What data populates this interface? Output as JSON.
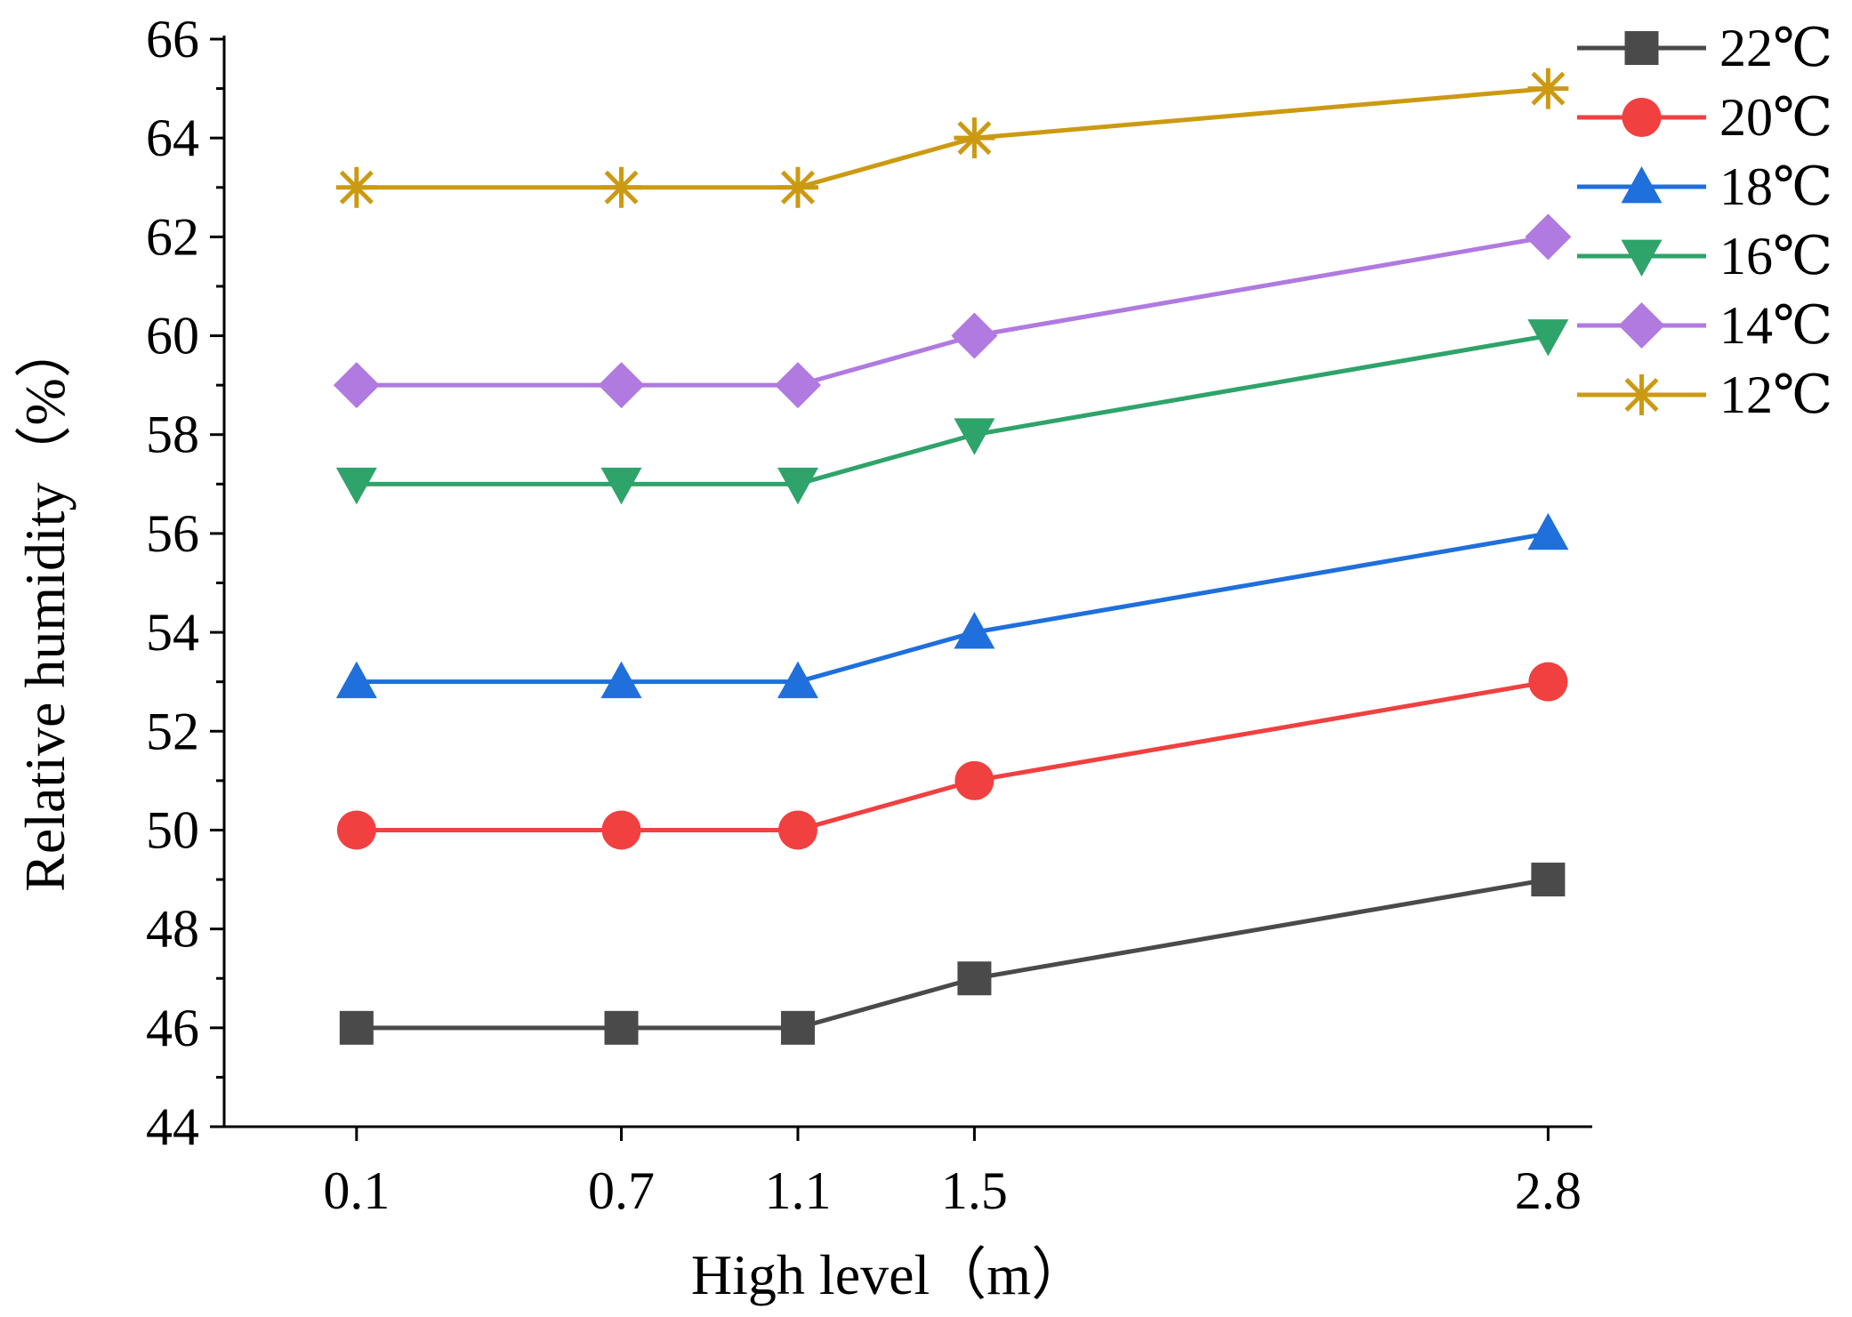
{
  "chart_data": {
    "type": "line",
    "title": "",
    "xlabel": "High level（m）",
    "ylabel": "Relative humidity（%）",
    "x": [
      0.1,
      0.7,
      1.1,
      1.5,
      2.8
    ],
    "x_tick_labels": [
      "0.1",
      "0.7",
      "1.1",
      "1.5",
      "2.8"
    ],
    "xlim": [
      -0.2,
      2.9
    ],
    "ylim": [
      44,
      66
    ],
    "y_ticks": [
      44,
      46,
      48,
      50,
      52,
      54,
      56,
      58,
      60,
      62,
      64,
      66
    ],
    "y_tick_labels": [
      "44",
      "46",
      "48",
      "50",
      "52",
      "54",
      "56",
      "58",
      "60",
      "62",
      "64",
      "66"
    ],
    "grid": false,
    "legend_position": "top-right",
    "series": [
      {
        "name": "22℃",
        "values": [
          46,
          46,
          46,
          47,
          49
        ],
        "color": "#4a4a4a",
        "marker": "square"
      },
      {
        "name": "20℃",
        "values": [
          50,
          50,
          50,
          51,
          53
        ],
        "color": "#f04040",
        "marker": "circle"
      },
      {
        "name": "18℃",
        "values": [
          53,
          53,
          53,
          54,
          56
        ],
        "color": "#1f6fdc",
        "marker": "triangle-up"
      },
      {
        "name": "16℃",
        "values": [
          57,
          57,
          57,
          58,
          60
        ],
        "color": "#2ea36a",
        "marker": "triangle-down"
      },
      {
        "name": "14℃",
        "values": [
          59,
          59,
          59,
          60,
          62
        ],
        "color": "#b07ae0",
        "marker": "diamond"
      },
      {
        "name": "12℃",
        "values": [
          63,
          63,
          63,
          64,
          65
        ],
        "color": "#cc9a12",
        "marker": "asterisk"
      }
    ]
  }
}
